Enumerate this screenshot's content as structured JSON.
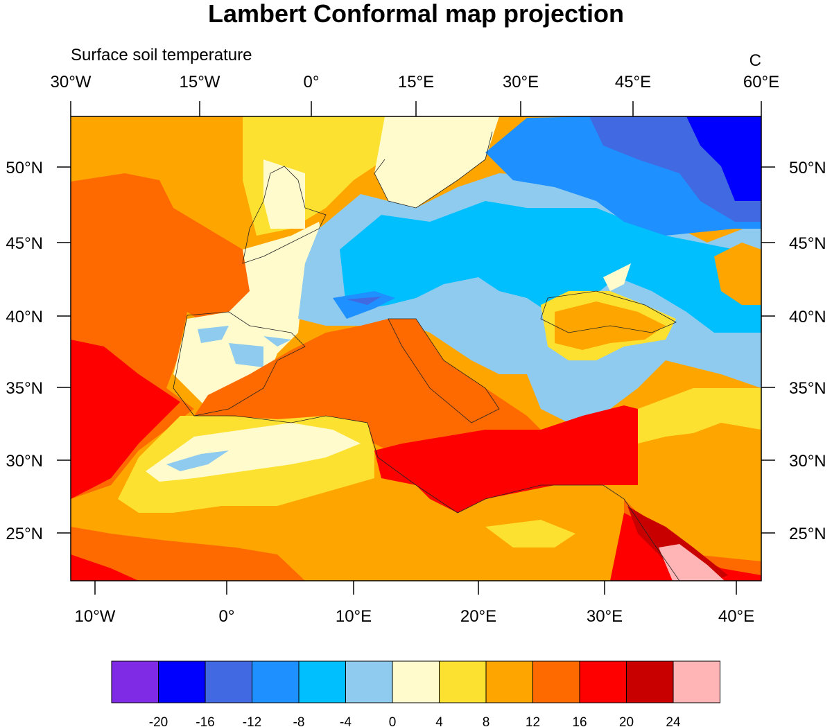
{
  "title": "Lambert Conformal map projection",
  "left_label": "Surface soil temperature",
  "right_label": "C",
  "top_ticks": [
    "30°W",
    "15°W",
    "0°",
    "15°E",
    "30°E",
    "45°E",
    "60°E"
  ],
  "bottom_ticks": [
    "10°W",
    "0°",
    "10°E",
    "20°E",
    "30°E",
    "40°E"
  ],
  "left_ticks": [
    "50°N",
    "45°N",
    "40°N",
    "35°N",
    "30°N",
    "25°N"
  ],
  "right_ticks": [
    "50°N",
    "45°N",
    "40°N",
    "35°N",
    "30°N",
    "25°N"
  ],
  "colorbar": {
    "colors": [
      "#7f2be6",
      "#0000ff",
      "#4169e1",
      "#1e90ff",
      "#00bfff",
      "#8ecbee",
      "#fffbcc",
      "#fde131",
      "#ffa500",
      "#ff6a00",
      "#ff0000",
      "#c80000",
      "#ffb5b5"
    ],
    "labels": [
      "-20",
      "-16",
      "-12",
      "-8",
      "-4",
      "0",
      "4",
      "8",
      "12",
      "16",
      "20",
      "24"
    ]
  }
}
